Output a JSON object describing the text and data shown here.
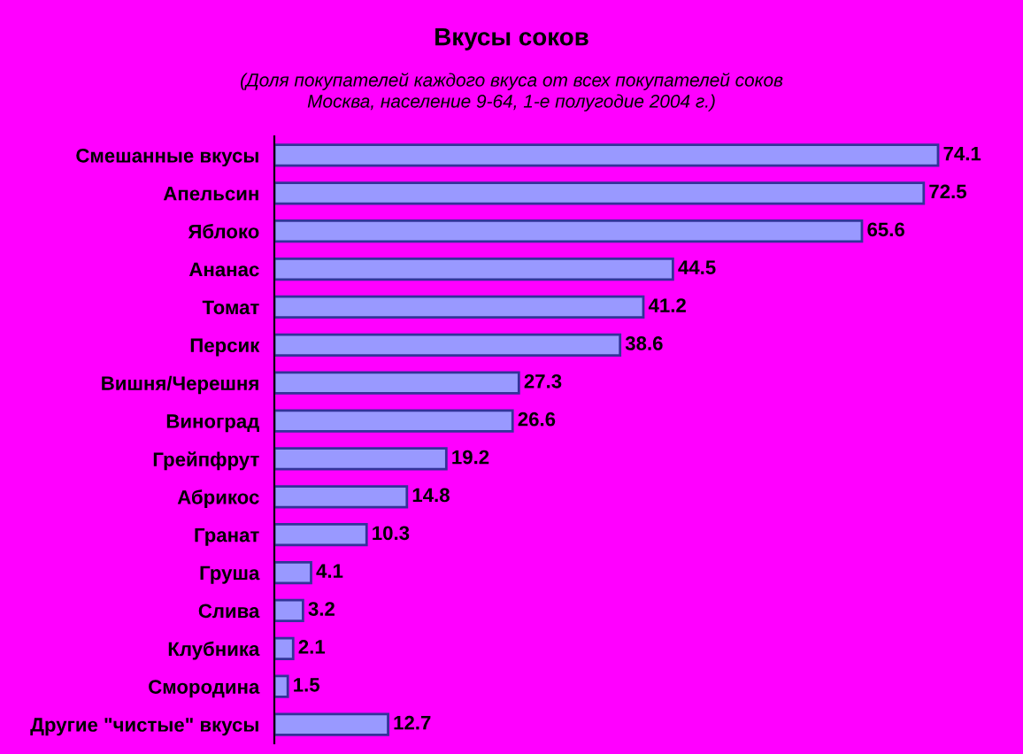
{
  "chart_data": {
    "type": "bar",
    "orientation": "horizontal",
    "title": "Вкусы соков",
    "subtitle": "(Доля покупателей каждого вкуса от всех покупателей соков\nМосква, население 9-64, 1-е полугодие 2004 г.)",
    "categories": [
      "Смешанные вкусы",
      "Апельсин",
      "Яблоко",
      "Ананас",
      "Томат",
      "Персик",
      "Вишня/Черешня",
      "Виноград",
      "Грейпфрут",
      "Абрикос",
      "Гранат",
      "Груша",
      "Слива",
      "Клубника",
      "Смородина",
      "Другие \"чистые\" вкусы"
    ],
    "values": [
      74.1,
      72.5,
      65.6,
      44.5,
      41.2,
      38.6,
      27.3,
      26.6,
      19.2,
      14.8,
      10.3,
      4.1,
      3.2,
      2.1,
      1.5,
      12.7
    ],
    "color": "#9999ff",
    "data_labels": true,
    "grid": false,
    "legend": false
  }
}
